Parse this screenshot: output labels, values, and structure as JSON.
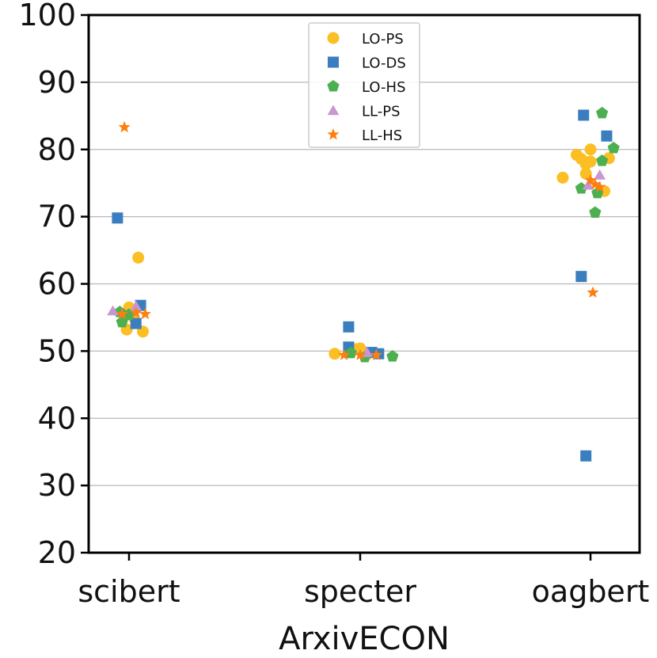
{
  "chart_data": {
    "type": "scatter",
    "title": "",
    "xlabel": "ArxivECON",
    "ylabel": "",
    "ylim": [
      20,
      100
    ],
    "yticks": [
      20,
      30,
      40,
      50,
      60,
      70,
      80,
      90,
      100
    ],
    "categories": [
      "scibert",
      "specter",
      "oagbert"
    ],
    "grid": "horizontal",
    "legend_position": "top-center",
    "series": [
      {
        "name": "LO-PS",
        "color": "#FBBF24",
        "marker": "circle",
        "points": [
          {
            "cat": 0,
            "jitter": 0.0,
            "y": 56.5
          },
          {
            "cat": 0,
            "jitter": -0.01,
            "y": 53.2
          },
          {
            "cat": 0,
            "jitter": 0.04,
            "y": 63.9
          },
          {
            "cat": 0,
            "jitter": 0.06,
            "y": 52.9
          },
          {
            "cat": 0,
            "jitter": 0.02,
            "y": 55.0
          },
          {
            "cat": 1,
            "jitter": -0.11,
            "y": 49.6
          },
          {
            "cat": 1,
            "jitter": -0.02,
            "y": 50.3
          },
          {
            "cat": 1,
            "jitter": 0.0,
            "y": 50.4
          },
          {
            "cat": 1,
            "jitter": 0.03,
            "y": 49.5
          },
          {
            "cat": 2,
            "jitter": -0.12,
            "y": 75.8
          },
          {
            "cat": 2,
            "jitter": -0.06,
            "y": 79.2
          },
          {
            "cat": 2,
            "jitter": -0.04,
            "y": 78.6
          },
          {
            "cat": 2,
            "jitter": -0.02,
            "y": 76.4
          },
          {
            "cat": 2,
            "jitter": 0.0,
            "y": 80.0
          },
          {
            "cat": 2,
            "jitter": 0.0,
            "y": 78.2
          },
          {
            "cat": 2,
            "jitter": 0.06,
            "y": 73.8
          },
          {
            "cat": 2,
            "jitter": 0.08,
            "y": 78.7
          },
          {
            "cat": 2,
            "jitter": -0.02,
            "y": 77.8
          }
        ]
      },
      {
        "name": "LO-DS",
        "color": "#3A7EBF",
        "marker": "square",
        "points": [
          {
            "cat": 0,
            "jitter": -0.05,
            "y": 69.8
          },
          {
            "cat": 0,
            "jitter": 0.05,
            "y": 56.8
          },
          {
            "cat": 0,
            "jitter": 0.03,
            "y": 54.1
          },
          {
            "cat": 1,
            "jitter": -0.05,
            "y": 53.6
          },
          {
            "cat": 1,
            "jitter": -0.05,
            "y": 50.6
          },
          {
            "cat": 1,
            "jitter": 0.05,
            "y": 49.8
          },
          {
            "cat": 1,
            "jitter": 0.08,
            "y": 49.6
          },
          {
            "cat": 2,
            "jitter": -0.03,
            "y": 85.1
          },
          {
            "cat": 2,
            "jitter": 0.07,
            "y": 82.0
          },
          {
            "cat": 2,
            "jitter": -0.04,
            "y": 61.1
          },
          {
            "cat": 2,
            "jitter": -0.02,
            "y": 34.4
          }
        ]
      },
      {
        "name": "LO-HS",
        "color": "#4CAF50",
        "marker": "pentagon",
        "points": [
          {
            "cat": 0,
            "jitter": -0.03,
            "y": 54.3
          },
          {
            "cat": 0,
            "jitter": -0.04,
            "y": 55.8
          },
          {
            "cat": 0,
            "jitter": 0.0,
            "y": 55.4
          },
          {
            "cat": 1,
            "jitter": -0.04,
            "y": 49.7
          },
          {
            "cat": 1,
            "jitter": 0.02,
            "y": 49.1
          },
          {
            "cat": 1,
            "jitter": 0.14,
            "y": 49.2
          },
          {
            "cat": 2,
            "jitter": 0.05,
            "y": 85.4
          },
          {
            "cat": 2,
            "jitter": 0.1,
            "y": 80.2
          },
          {
            "cat": 2,
            "jitter": 0.05,
            "y": 78.3
          },
          {
            "cat": 2,
            "jitter": -0.04,
            "y": 74.2
          },
          {
            "cat": 2,
            "jitter": 0.03,
            "y": 73.5
          },
          {
            "cat": 2,
            "jitter": 0.02,
            "y": 70.6
          }
        ]
      },
      {
        "name": "LL-PS",
        "color": "#C896D0",
        "marker": "triangle",
        "points": [
          {
            "cat": 0,
            "jitter": -0.07,
            "y": 56.0
          },
          {
            "cat": 0,
            "jitter": 0.03,
            "y": 56.7
          },
          {
            "cat": 1,
            "jitter": 0.03,
            "y": 49.8
          },
          {
            "cat": 2,
            "jitter": 0.04,
            "y": 76.2
          },
          {
            "cat": 2,
            "jitter": -0.01,
            "y": 74.7
          }
        ]
      },
      {
        "name": "LL-HS",
        "color": "#FF7F0E",
        "marker": "star",
        "points": [
          {
            "cat": 0,
            "jitter": -0.02,
            "y": 83.3
          },
          {
            "cat": 0,
            "jitter": -0.03,
            "y": 55.5
          },
          {
            "cat": 0,
            "jitter": 0.03,
            "y": 55.7
          },
          {
            "cat": 0,
            "jitter": 0.07,
            "y": 55.5
          },
          {
            "cat": 1,
            "jitter": -0.07,
            "y": 49.4
          },
          {
            "cat": 1,
            "jitter": 0.0,
            "y": 49.4
          },
          {
            "cat": 1,
            "jitter": 0.07,
            "y": 49.4
          },
          {
            "cat": 2,
            "jitter": 0.0,
            "y": 75.4
          },
          {
            "cat": 2,
            "jitter": 0.02,
            "y": 74.8
          },
          {
            "cat": 2,
            "jitter": 0.04,
            "y": 74.4
          },
          {
            "cat": 2,
            "jitter": 0.01,
            "y": 58.7
          }
        ]
      }
    ]
  }
}
